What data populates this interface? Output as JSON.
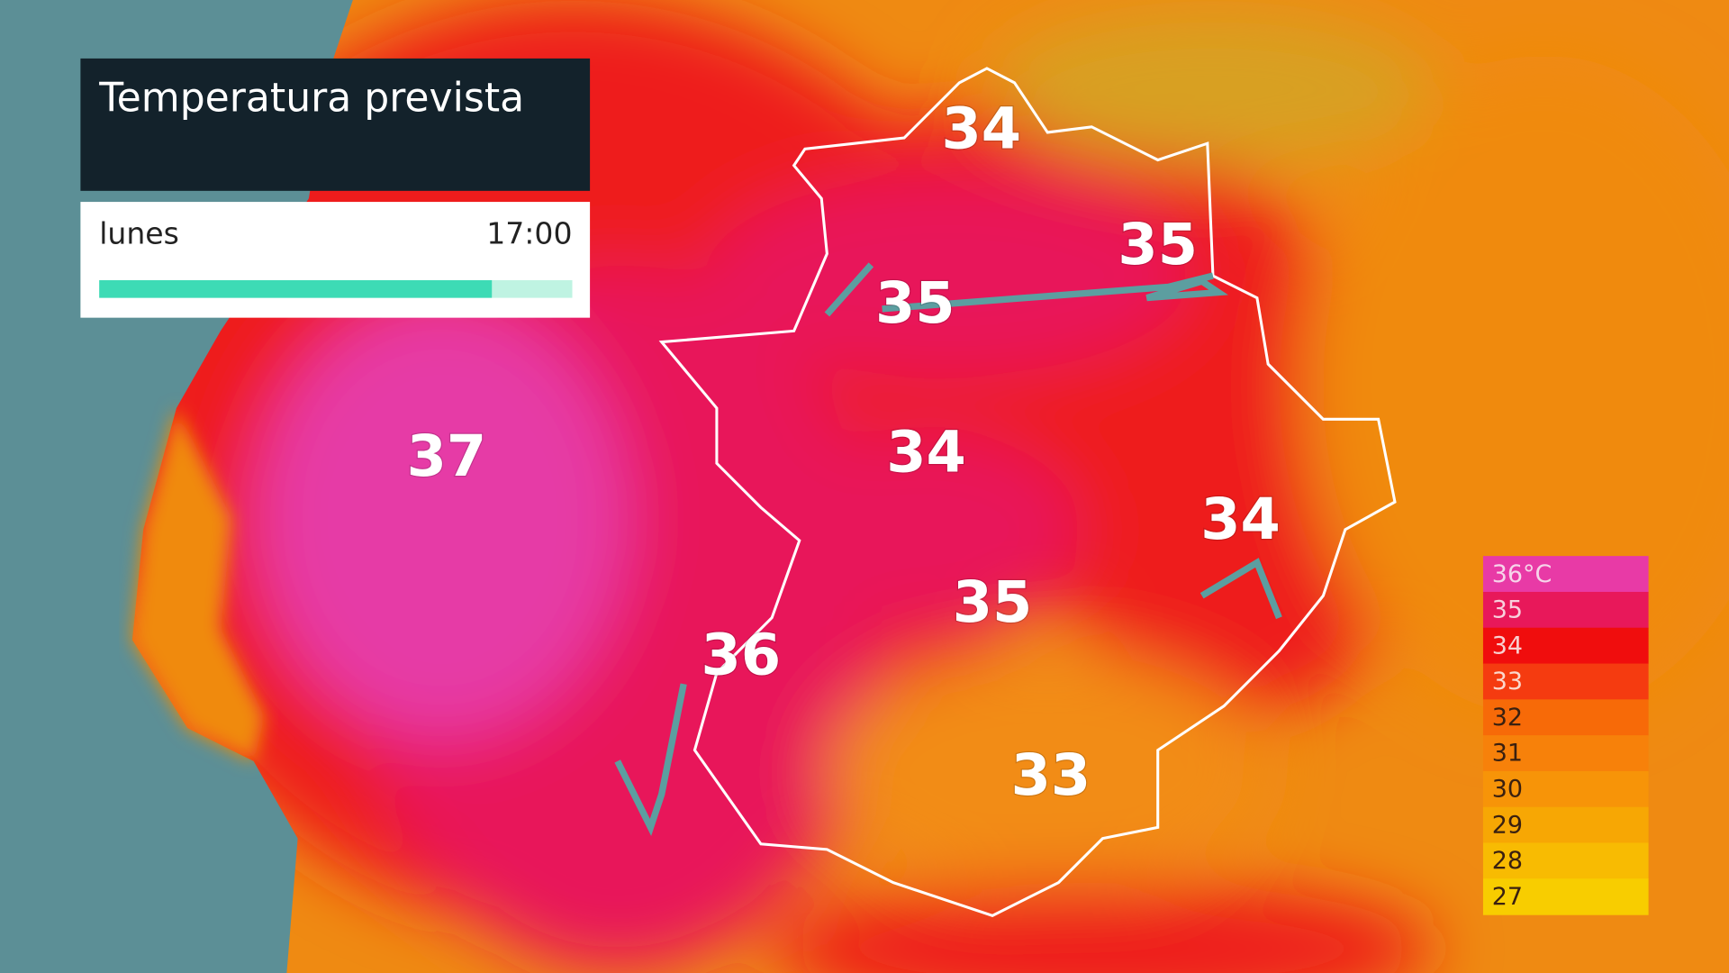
{
  "header": {
    "title": "Temperatura prevista",
    "day": "lunes",
    "time": "17:00",
    "progress": 0.83
  },
  "map": {
    "labels": [
      34,
      35,
      35,
      37,
      34,
      34,
      35,
      36,
      33
    ]
  },
  "legend": {
    "items": [
      {
        "value": 36,
        "label": "36°C",
        "color": "#e83aa6",
        "text_color": "#f6d4ea"
      },
      {
        "value": 35,
        "color": "#e8185a",
        "text_color": "#f8d0dc"
      },
      {
        "value": 34,
        "color": "#f00d0d",
        "text_color": "#f8d0d0"
      },
      {
        "value": 33,
        "color": "#f53b10",
        "text_color": "#fbd8cc"
      },
      {
        "value": 32,
        "color": "#f76a08",
        "text_color": "#3a2010"
      },
      {
        "value": 31,
        "color": "#f7810a",
        "text_color": "#3a2010"
      },
      {
        "value": 30,
        "color": "#f79408",
        "text_color": "#3a2010"
      },
      {
        "value": 29,
        "color": "#f7a704",
        "text_color": "#3a2010"
      },
      {
        "value": 28,
        "color": "#f8bb02",
        "text_color": "#3a2010"
      },
      {
        "value": 27,
        "color": "#f8cd00",
        "text_color": "#3a2010"
      }
    ]
  }
}
